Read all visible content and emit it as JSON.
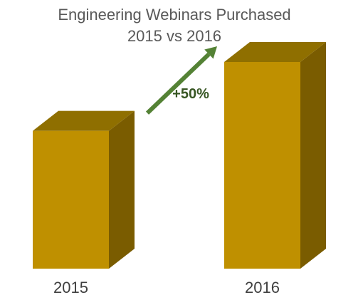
{
  "chart_data": {
    "type": "bar",
    "title": "Engineering Webinars Purchased",
    "subtitle": "2015 vs 2016",
    "categories": [
      "2015",
      "2016"
    ],
    "values": [
      2,
      3
    ],
    "xlabel": "",
    "ylabel": "",
    "grid": false,
    "legend": "none",
    "annotation": {
      "text": "+50%",
      "type": "arrow",
      "from_category": "2015",
      "to_category": "2016"
    }
  },
  "colors": {
    "bar_front": "#BF9000",
    "bar_top": "#8F6F00",
    "bar_side": "#7A5C00",
    "arrow": "#548235",
    "annotation_text": "#375623",
    "title_text": "#595959",
    "tick_text": "#404040"
  }
}
